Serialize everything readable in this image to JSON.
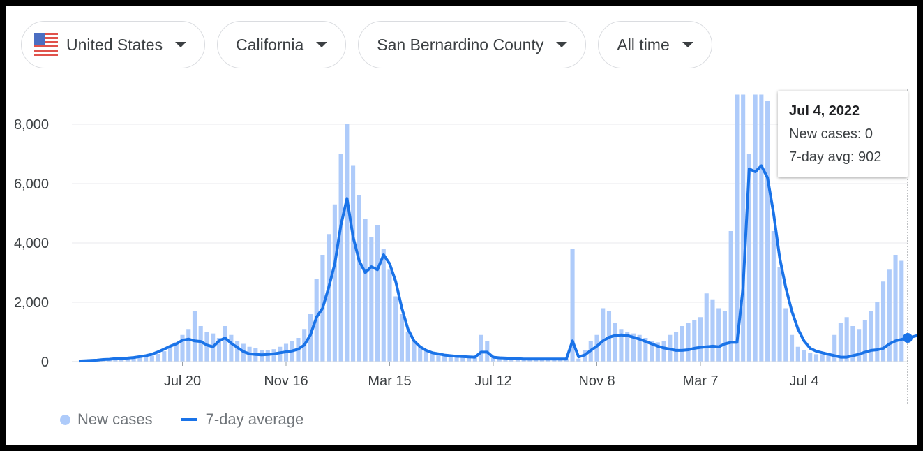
{
  "filters": {
    "country": "United States",
    "state": "California",
    "county": "San Bernardino County",
    "range": "All time"
  },
  "tooltip": {
    "date": "Jul 4, 2022",
    "new_cases": "New cases: 0",
    "avg": "7-day avg: 902"
  },
  "legend": {
    "bars_label": "New cases",
    "line_label": "7-day average"
  },
  "colors": {
    "bar": "#aecbfa",
    "line": "#1a73e8",
    "grid": "#e8eaed"
  },
  "chart_data": {
    "type": "bar",
    "ylim": [
      0,
      9000
    ],
    "y_ticks": [
      0,
      2000,
      4000,
      6000,
      8000
    ],
    "y_tick_labels": [
      "0",
      "2,000",
      "4,000",
      "6,000",
      "8,000"
    ],
    "x_tick_labels": [
      "Jul 20",
      "Nov 16",
      "Mar 15",
      "Jul 12",
      "Nov 8",
      "Mar 7",
      "Jul 4"
    ],
    "x_tick_positions": [
      17,
      34,
      51,
      68,
      85,
      102,
      119
    ],
    "period": "half-week",
    "series": [
      {
        "name": "New cases",
        "kind": "bar",
        "values": [
          0,
          0,
          0,
          60,
          80,
          90,
          100,
          110,
          120,
          130,
          150,
          170,
          200,
          260,
          350,
          500,
          650,
          900,
          1100,
          1700,
          1200,
          1000,
          950,
          800,
          1200,
          900,
          700,
          600,
          500,
          450,
          400,
          380,
          420,
          500,
          600,
          700,
          800,
          1100,
          1600,
          2800,
          3600,
          4300,
          5300,
          7000,
          8000,
          6600,
          5600,
          4800,
          4200,
          4600,
          3800,
          3100,
          2200,
          1600,
          1000,
          700,
          500,
          400,
          300,
          260,
          220,
          200,
          180,
          170,
          160,
          150,
          900,
          700,
          150,
          130,
          120,
          110,
          100,
          90,
          90,
          90,
          90,
          90,
          90,
          90,
          90,
          3800,
          100,
          400,
          700,
          900,
          1800,
          1700,
          1300,
          1100,
          1000,
          950,
          900,
          800,
          700,
          650,
          700,
          900,
          1000,
          1200,
          1300,
          1400,
          1500,
          2300,
          2100,
          1800,
          1700,
          4400,
          9000,
          9000,
          7000,
          9000,
          9000,
          8800,
          4400,
          3200,
          1800,
          900,
          500,
          400,
          300,
          250,
          250,
          300,
          900,
          1300,
          1500,
          1200,
          1100,
          1400,
          1700,
          2000,
          2700,
          3100,
          3600,
          3400,
          0
        ],
        "note": "values for half-week buckets, estimated from the chart"
      },
      {
        "name": "7-day average",
        "kind": "line",
        "values": [
          20,
          30,
          40,
          50,
          70,
          80,
          100,
          110,
          120,
          140,
          170,
          200,
          250,
          330,
          420,
          520,
          600,
          720,
          760,
          700,
          680,
          560,
          500,
          700,
          800,
          620,
          480,
          340,
          260,
          240,
          230,
          240,
          260,
          300,
          330,
          360,
          420,
          560,
          900,
          1500,
          1800,
          2500,
          3300,
          4600,
          5500,
          4200,
          3400,
          3000,
          3200,
          3100,
          3600,
          3300,
          2700,
          1800,
          1100,
          700,
          500,
          380,
          300,
          260,
          220,
          200,
          180,
          170,
          160,
          150,
          320,
          320,
          150,
          130,
          120,
          110,
          100,
          90,
          90,
          90,
          90,
          90,
          90,
          90,
          90,
          700,
          160,
          220,
          380,
          520,
          700,
          820,
          880,
          900,
          880,
          820,
          760,
          680,
          600,
          520,
          460,
          420,
          380,
          380,
          400,
          450,
          480,
          500,
          520,
          500,
          600,
          650,
          650,
          2500,
          6500,
          6400,
          6600,
          6200,
          5000,
          3500,
          2500,
          1700,
          1100,
          700,
          450,
          350,
          300,
          250,
          200,
          150,
          150,
          200,
          250,
          320,
          380,
          400,
          450,
          600,
          700,
          750,
          800,
          850,
          902
        ]
      }
    ]
  }
}
